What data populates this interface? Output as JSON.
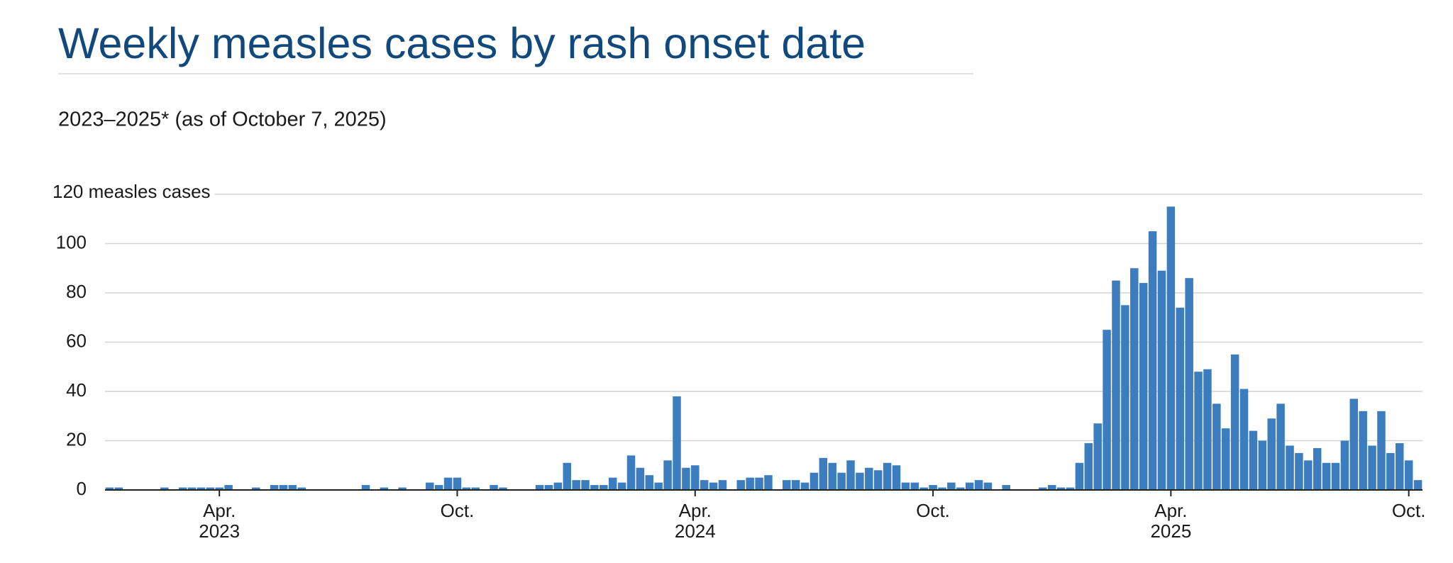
{
  "chart_data": {
    "type": "bar",
    "title": "Weekly measles cases by rash onset date",
    "subtitle": "2023–2025* (as of October 7, 2025)",
    "color": "#3b7dbf",
    "grid": true,
    "ylim": [
      0,
      120
    ],
    "yticks": [
      0,
      20,
      40,
      60,
      80,
      100,
      {
        "value": 120,
        "label": "120 measles cases"
      }
    ],
    "categories": [
      null,
      null,
      null,
      null,
      null,
      null,
      null,
      null,
      null,
      null,
      null,
      null,
      "Apr.\n2023",
      null,
      null,
      null,
      null,
      null,
      null,
      null,
      null,
      null,
      null,
      null,
      null,
      null,
      null,
      null,
      null,
      null,
      null,
      null,
      null,
      null,
      null,
      null,
      null,
      null,
      "Oct.",
      null,
      null,
      null,
      null,
      null,
      null,
      null,
      null,
      null,
      null,
      null,
      null,
      null,
      null,
      null,
      null,
      null,
      null,
      null,
      null,
      null,
      null,
      null,
      null,
      null,
      "Apr.\n2024",
      null,
      null,
      null,
      null,
      null,
      null,
      null,
      null,
      null,
      null,
      null,
      null,
      null,
      null,
      null,
      null,
      null,
      null,
      null,
      null,
      null,
      null,
      null,
      null,
      null,
      "Oct.",
      null,
      null,
      null,
      null,
      null,
      null,
      null,
      null,
      null,
      null,
      null,
      null,
      null,
      null,
      null,
      null,
      null,
      null,
      null,
      null,
      null,
      null,
      null,
      null,
      null,
      "Apr.\n2025",
      null,
      null,
      null,
      null,
      null,
      null,
      null,
      null,
      null,
      null,
      null,
      null,
      null,
      null,
      null,
      null,
      null,
      null,
      null,
      null,
      null,
      null,
      null,
      null,
      null,
      "Oct.",
      null
    ],
    "values": [
      1,
      1,
      0,
      0,
      0,
      0,
      1,
      0,
      1,
      1,
      1,
      1,
      1,
      2,
      0,
      0,
      1,
      0,
      2,
      2,
      2,
      1,
      0,
      0,
      0,
      0,
      0,
      0,
      2,
      0,
      1,
      0,
      1,
      0,
      0,
      3,
      2,
      5,
      5,
      1,
      1,
      0,
      2,
      1,
      0,
      0,
      0,
      2,
      2,
      3,
      11,
      4,
      4,
      2,
      2,
      5,
      3,
      14,
      9,
      6,
      3,
      12,
      38,
      9,
      10,
      4,
      3,
      4,
      0,
      4,
      5,
      5,
      6,
      0,
      4,
      4,
      3,
      7,
      13,
      11,
      7,
      12,
      7,
      9,
      8,
      11,
      10,
      3,
      3,
      1,
      2,
      1,
      3,
      1,
      3,
      4,
      3,
      0,
      2,
      0,
      0,
      0,
      1,
      2,
      1,
      1,
      11,
      19,
      27,
      65,
      85,
      75,
      90,
      84,
      105,
      89,
      115,
      74,
      86,
      48,
      49,
      35,
      25,
      55,
      41,
      24,
      20,
      29,
      35,
      18,
      15,
      12,
      17,
      11,
      11,
      20,
      37,
      32,
      18,
      32,
      15,
      19,
      12,
      4
    ]
  }
}
